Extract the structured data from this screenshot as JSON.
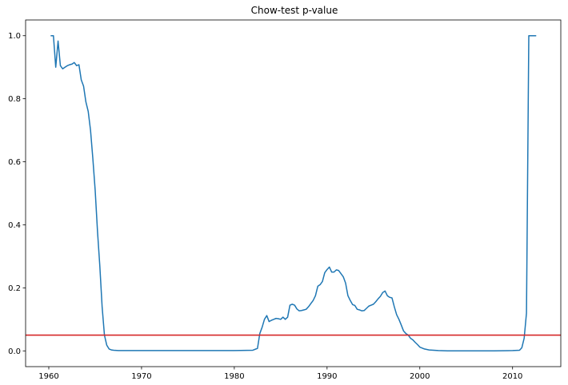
{
  "chart_data": {
    "type": "line",
    "title": "Chow-test p-value",
    "xlabel": "",
    "ylabel": "",
    "xlim": [
      1957.5,
      2015.2
    ],
    "ylim": [
      -0.05,
      1.05
    ],
    "xticks": [
      1960,
      1970,
      1980,
      1990,
      2000,
      2010
    ],
    "xtick_labels": [
      "1960",
      "1970",
      "1980",
      "1990",
      "2000",
      "2010"
    ],
    "yticks": [
      0.0,
      0.2,
      0.4,
      0.6,
      0.8,
      1.0
    ],
    "ytick_labels": [
      "0.0",
      "0.2",
      "0.4",
      "0.6",
      "0.8",
      "1.0"
    ],
    "grid": false,
    "series": [
      {
        "color": "#1f77b4",
        "x": [
          1960.25,
          1960.5,
          1960.75,
          1961.0,
          1961.25,
          1961.5,
          1961.75,
          1962.0,
          1962.25,
          1962.5,
          1962.75,
          1963.0,
          1963.25,
          1963.5,
          1963.75,
          1964.0,
          1964.25,
          1964.5,
          1964.75,
          1965.0,
          1965.25,
          1965.5,
          1965.75,
          1966.0,
          1966.25,
          1966.5,
          1966.75,
          1967.0,
          1967.5,
          1968.0,
          1970.0,
          1975.0,
          1980.0,
          1982.0,
          1982.5,
          1982.75,
          1983.0,
          1983.25,
          1983.5,
          1983.75,
          1984.0,
          1984.25,
          1984.5,
          1984.75,
          1985.0,
          1985.25,
          1985.5,
          1985.75,
          1986.0,
          1986.25,
          1986.5,
          1986.75,
          1987.0,
          1987.25,
          1987.5,
          1987.75,
          1988.0,
          1988.25,
          1988.5,
          1988.75,
          1989.0,
          1989.25,
          1989.5,
          1989.75,
          1990.0,
          1990.25,
          1990.5,
          1990.75,
          1991.0,
          1991.25,
          1991.5,
          1991.75,
          1992.0,
          1992.25,
          1992.5,
          1992.75,
          1993.0,
          1993.25,
          1993.5,
          1993.75,
          1994.0,
          1994.25,
          1994.5,
          1994.75,
          1995.0,
          1995.25,
          1995.5,
          1995.75,
          1996.0,
          1996.25,
          1996.5,
          1996.75,
          1997.0,
          1997.25,
          1997.5,
          1997.75,
          1998.0,
          1998.25,
          1998.5,
          1998.75,
          1999.0,
          1999.25,
          1999.5,
          1999.75,
          2000.0,
          2000.5,
          2001.0,
          2001.5,
          2002.0,
          2003.0,
          2005.0,
          2008.0,
          2010.0,
          2010.75,
          2011.0,
          2011.25,
          2011.5,
          2011.75,
          2012.0,
          2012.25,
          2012.5
        ],
        "values": [
          1.0,
          1.0,
          0.9,
          0.983,
          0.905,
          0.895,
          0.9,
          0.905,
          0.908,
          0.91,
          0.915,
          0.905,
          0.908,
          0.86,
          0.84,
          0.79,
          0.76,
          0.7,
          0.61,
          0.51,
          0.38,
          0.27,
          0.14,
          0.05,
          0.018,
          0.006,
          0.003,
          0.002,
          0.001,
          0.001,
          0.001,
          0.001,
          0.001,
          0.002,
          0.008,
          0.055,
          0.075,
          0.1,
          0.112,
          0.093,
          0.097,
          0.1,
          0.103,
          0.102,
          0.1,
          0.107,
          0.1,
          0.107,
          0.145,
          0.148,
          0.145,
          0.133,
          0.127,
          0.128,
          0.13,
          0.132,
          0.14,
          0.15,
          0.16,
          0.175,
          0.205,
          0.21,
          0.22,
          0.248,
          0.258,
          0.266,
          0.25,
          0.25,
          0.257,
          0.255,
          0.245,
          0.235,
          0.215,
          0.175,
          0.16,
          0.147,
          0.144,
          0.132,
          0.13,
          0.127,
          0.128,
          0.135,
          0.142,
          0.145,
          0.148,
          0.156,
          0.165,
          0.173,
          0.185,
          0.19,
          0.175,
          0.17,
          0.168,
          0.14,
          0.115,
          0.1,
          0.082,
          0.063,
          0.055,
          0.05,
          0.04,
          0.035,
          0.027,
          0.02,
          0.012,
          0.006,
          0.003,
          0.002,
          0.001,
          0.0,
          0.0,
          0.0,
          0.001,
          0.002,
          0.01,
          0.04,
          0.12,
          1.0,
          1.0,
          1.0,
          1.0
        ]
      }
    ],
    "hlines": [
      {
        "y": 0.05,
        "color": "#d62728"
      }
    ]
  }
}
